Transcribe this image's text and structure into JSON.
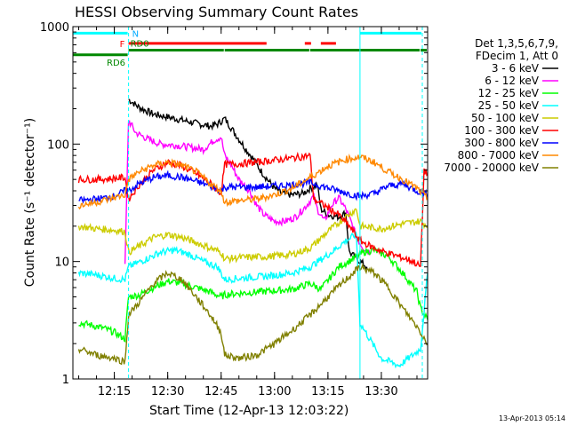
{
  "chart_data": {
    "type": "line",
    "title": "HESSI Observing Summary Count Rates",
    "xlabel": "Start Time (12-Apr-13 12:03:22)",
    "ylabel": "Count Rate (s⁻¹ detector⁻¹)",
    "y_scale": "log",
    "ylim": [
      1,
      1000
    ],
    "xlim": [
      "12:03:22",
      "13:43:00"
    ],
    "x_ticks": [
      "12:15",
      "12:30",
      "12:45",
      "13:00",
      "13:15",
      "13:30"
    ],
    "y_ticks": [
      "1",
      "10",
      "100",
      "1000"
    ],
    "footer_date": "13-Apr-2013 05:14",
    "legend_header": [
      "Det 1,3,5,6,7,9,",
      "FDecim 1, Att 0"
    ],
    "flag_labels": {
      "night": "N",
      "flare": "F",
      "rd0": "RD0",
      "rd6": "RD6"
    },
    "night_intervals": [
      [
        "12:03:22",
        "12:19:00"
      ],
      [
        "13:24:00",
        "13:41:30"
      ]
    ],
    "boundary_times": [
      "12:19:00",
      "13:24:00",
      "13:41:30"
    ],
    "flag_segments": {
      "night": {
        "color": "#00ffff",
        "y": 880,
        "segments": [
          [
            "12:03:22",
            "12:19:00"
          ],
          [
            "13:24:00",
            "13:41:30"
          ]
        ]
      },
      "flare": {
        "color": "#ff0000",
        "y": 720,
        "segments": [
          [
            "12:19:00",
            "12:58:00"
          ],
          [
            "13:08:30",
            "13:10:30"
          ],
          [
            "13:13:00",
            "13:17:30"
          ]
        ]
      },
      "rd0": {
        "color": "#008800",
        "y": 630,
        "segments": [
          [
            "12:19:00",
            "12:46:00"
          ],
          [
            "12:46:00",
            "13:10:00"
          ],
          [
            "13:10:00",
            "13:41:00"
          ],
          [
            "13:41:00",
            "13:43:00"
          ]
        ]
      },
      "rd6": {
        "color": "#008800",
        "y": 575,
        "segments": [
          [
            "12:03:22",
            "12:19:00"
          ]
        ]
      }
    },
    "series": [
      {
        "name": "3 - 6 keV",
        "color": "#000000",
        "points": [
          [
            "12:19:00",
            240
          ],
          [
            "12:22:00",
            205
          ],
          [
            "12:26:00",
            180
          ],
          [
            "12:30:00",
            170
          ],
          [
            "12:34:00",
            160
          ],
          [
            "12:38:00",
            150
          ],
          [
            "12:42:00",
            142
          ],
          [
            "12:44:00",
            148
          ],
          [
            "12:46:00",
            165
          ],
          [
            "12:48:00",
            135
          ],
          [
            "12:50:00",
            110
          ],
          [
            "12:52:00",
            90
          ],
          [
            "12:54:00",
            75
          ],
          [
            "12:56:00",
            60
          ],
          [
            "12:58:00",
            50
          ],
          [
            "13:00:00",
            42
          ],
          [
            "13:02:00",
            38
          ],
          [
            "13:05:00",
            37
          ],
          [
            "13:08:00",
            38
          ],
          [
            "13:10:00",
            42
          ],
          [
            "13:12:00",
            45
          ],
          [
            "13:13:00",
            28
          ],
          [
            "13:15:00",
            25
          ],
          [
            "13:18:00",
            24
          ],
          [
            "13:20:00",
            26
          ],
          [
            "13:21:00",
            12
          ],
          [
            "13:24:00",
            10
          ],
          [
            "13:26:00",
            9
          ]
        ]
      },
      {
        "name": "6 - 12 keV",
        "color": "#ff00ff",
        "points": [
          [
            "12:18:00",
            9
          ],
          [
            "12:19:00",
            160
          ],
          [
            "12:21:00",
            125
          ],
          [
            "12:25:00",
            108
          ],
          [
            "12:28:00",
            100
          ],
          [
            "12:32:00",
            98
          ],
          [
            "12:36:00",
            94
          ],
          [
            "12:40:00",
            90
          ],
          [
            "12:43:00",
            108
          ],
          [
            "12:45:00",
            115
          ],
          [
            "12:46:00",
            80
          ],
          [
            "12:48:00",
            65
          ],
          [
            "12:50:00",
            50
          ],
          [
            "12:53:00",
            40
          ],
          [
            "12:55:00",
            30
          ],
          [
            "12:57:00",
            25
          ],
          [
            "13:00:00",
            22
          ],
          [
            "13:03:00",
            22
          ],
          [
            "13:06:00",
            24
          ],
          [
            "13:09:00",
            30
          ],
          [
            "13:11:00",
            36
          ],
          [
            "13:12:00",
            28
          ],
          [
            "13:14:00",
            22
          ],
          [
            "13:16:00",
            30
          ],
          [
            "13:18:00",
            35
          ],
          [
            "13:20:00",
            28
          ],
          [
            "13:22:00",
            20
          ],
          [
            "13:23:00",
            16
          ],
          [
            "13:25:00",
            13
          ],
          [
            "13:27:00",
            12
          ]
        ]
      },
      {
        "name": "12 - 25 keV",
        "color": "#00ff00",
        "points": [
          [
            "12:05:00",
            3.0
          ],
          [
            "12:08:00",
            2.9
          ],
          [
            "12:12:00",
            2.7
          ],
          [
            "12:15:00",
            2.5
          ],
          [
            "12:18:00",
            2.2
          ],
          [
            "12:19:00",
            5.0
          ],
          [
            "12:22:00",
            5.2
          ],
          [
            "12:26:00",
            6.0
          ],
          [
            "12:30:00",
            6.8
          ],
          [
            "12:34:00",
            6.5
          ],
          [
            "12:38:00",
            6.0
          ],
          [
            "12:42:00",
            5.5
          ],
          [
            "12:45:00",
            5.0
          ],
          [
            "12:46:00",
            5.2
          ],
          [
            "12:48:00",
            5.3
          ],
          [
            "12:55:00",
            5.5
          ],
          [
            "13:05:00",
            5.8
          ],
          [
            "13:10:00",
            6.5
          ],
          [
            "13:13:00",
            5.8
          ],
          [
            "13:18:00",
            9.0
          ],
          [
            "13:22:00",
            10.5
          ],
          [
            "13:25:00",
            12.0
          ],
          [
            "13:28:00",
            12.5
          ],
          [
            "13:32:00",
            11.0
          ],
          [
            "13:36:00",
            8.0
          ],
          [
            "13:40:00",
            5.5
          ],
          [
            "13:41:00",
            4.0
          ],
          [
            "13:43:00",
            3.2
          ]
        ]
      },
      {
        "name": "25 - 50 keV",
        "color": "#00ffff",
        "points": [
          [
            "12:05:00",
            8.0
          ],
          [
            "12:10:00",
            7.7
          ],
          [
            "12:15:00",
            7.2
          ],
          [
            "12:18:00",
            7.0
          ],
          [
            "12:19:00",
            9.0
          ],
          [
            "12:24:00",
            10.5
          ],
          [
            "12:28:00",
            12.0
          ],
          [
            "12:32:00",
            12.5
          ],
          [
            "12:36:00",
            11.5
          ],
          [
            "12:40:00",
            10.0
          ],
          [
            "12:44:00",
            9.0
          ],
          [
            "12:46:00",
            7.0
          ],
          [
            "12:50:00",
            7.2
          ],
          [
            "12:58:00",
            7.5
          ],
          [
            "13:05:00",
            8.0
          ],
          [
            "13:10:00",
            9.0
          ],
          [
            "13:16:00",
            12.0
          ],
          [
            "13:20:00",
            15.0
          ],
          [
            "13:23:00",
            17.0
          ],
          [
            "13:24:00",
            3.0
          ],
          [
            "13:30:00",
            1.5
          ],
          [
            "13:35:00",
            1.3
          ],
          [
            "13:41:00",
            1.8
          ],
          [
            "13:43:00",
            8.0
          ]
        ]
      },
      {
        "name": "50 - 100 keV",
        "color": "#cccc00",
        "points": [
          [
            "12:05:00",
            20.0
          ],
          [
            "12:10:00",
            19.0
          ],
          [
            "12:15:00",
            18.5
          ],
          [
            "12:18:00",
            18.0
          ],
          [
            "12:19:00",
            12.0
          ],
          [
            "12:22:00",
            13.5
          ],
          [
            "12:26:00",
            16.0
          ],
          [
            "12:30:00",
            17.0
          ],
          [
            "12:34:00",
            16.0
          ],
          [
            "12:38:00",
            14.5
          ],
          [
            "12:42:00",
            13.0
          ],
          [
            "12:45:00",
            12.0
          ],
          [
            "12:46:00",
            10.5
          ],
          [
            "12:50:00",
            10.8
          ],
          [
            "12:58:00",
            11.0
          ],
          [
            "13:05:00",
            11.5
          ],
          [
            "13:10:00",
            13.0
          ],
          [
            "13:15:00",
            18.0
          ],
          [
            "13:20:00",
            24.0
          ],
          [
            "13:23:00",
            28.0
          ],
          [
            "13:24:00",
            20.0
          ],
          [
            "13:30:00",
            19.0
          ],
          [
            "13:36:00",
            21.0
          ],
          [
            "13:41:00",
            22.0
          ],
          [
            "13:43:00",
            20.0
          ]
        ]
      },
      {
        "name": "100 - 300 keV",
        "color": "#ff0000",
        "points": [
          [
            "12:05:00",
            50
          ],
          [
            "12:10:00",
            50
          ],
          [
            "12:15:00",
            51
          ],
          [
            "12:18:00",
            52
          ],
          [
            "12:19:00",
            34
          ],
          [
            "12:22:00",
            45
          ],
          [
            "12:26:00",
            60
          ],
          [
            "12:30:00",
            70
          ],
          [
            "12:34:00",
            65
          ],
          [
            "12:38:00",
            56
          ],
          [
            "12:42:00",
            46
          ],
          [
            "12:45:00",
            38
          ],
          [
            "12:46:00",
            67
          ],
          [
            "12:50:00",
            68
          ],
          [
            "12:55:00",
            70
          ],
          [
            "13:00:00",
            73
          ],
          [
            "13:05:00",
            76
          ],
          [
            "13:10:00",
            80
          ],
          [
            "13:11:00",
            34
          ],
          [
            "13:14:00",
            30
          ],
          [
            "13:18:00",
            25
          ],
          [
            "13:21:00",
            20
          ],
          [
            "13:24:00",
            15
          ],
          [
            "13:28:00",
            13
          ],
          [
            "13:31:00",
            12
          ],
          [
            "13:35:00",
            11
          ],
          [
            "13:39:00",
            10
          ],
          [
            "13:41:00",
            9
          ],
          [
            "13:42:00",
            60
          ],
          [
            "13:43:00",
            55
          ]
        ]
      },
      {
        "name": "300 - 800 keV",
        "color": "#0000ff",
        "points": [
          [
            "12:05:00",
            33
          ],
          [
            "12:10:00",
            34
          ],
          [
            "12:15:00",
            36
          ],
          [
            "12:18:00",
            40
          ],
          [
            "12:19:00",
            40
          ],
          [
            "12:22:00",
            46
          ],
          [
            "12:26:00",
            52
          ],
          [
            "12:30:00",
            54
          ],
          [
            "12:34:00",
            52
          ],
          [
            "12:38:00",
            48
          ],
          [
            "12:42:00",
            44
          ],
          [
            "12:45:00",
            40
          ],
          [
            "12:46:00",
            43
          ],
          [
            "12:50:00",
            43
          ],
          [
            "12:55:00",
            43
          ],
          [
            "13:00:00",
            44
          ],
          [
            "13:05:00",
            45
          ],
          [
            "13:10:00",
            47
          ],
          [
            "13:13:00",
            44
          ],
          [
            "13:18:00",
            40
          ],
          [
            "13:22:00",
            37
          ],
          [
            "13:24:00",
            36
          ],
          [
            "13:28:00",
            38
          ],
          [
            "13:32:00",
            44
          ],
          [
            "13:36:00",
            46
          ],
          [
            "13:40:00",
            40
          ],
          [
            "13:43:00",
            37
          ]
        ]
      },
      {
        "name": "800 - 7000 keV",
        "color": "#ff8800",
        "points": [
          [
            "12:05:00",
            30
          ],
          [
            "12:10:00",
            32
          ],
          [
            "12:15:00",
            35
          ],
          [
            "12:18:00",
            37
          ],
          [
            "12:19:00",
            50
          ],
          [
            "12:22:00",
            58
          ],
          [
            "12:26:00",
            66
          ],
          [
            "12:30:00",
            70
          ],
          [
            "12:34:00",
            66
          ],
          [
            "12:38:00",
            58
          ],
          [
            "12:42:00",
            46
          ],
          [
            "12:45:00",
            40
          ],
          [
            "12:46:00",
            32
          ],
          [
            "12:50:00",
            33
          ],
          [
            "12:55:00",
            34
          ],
          [
            "13:00:00",
            37
          ],
          [
            "13:05:00",
            42
          ],
          [
            "13:10:00",
            52
          ],
          [
            "13:15:00",
            65
          ],
          [
            "13:20:00",
            74
          ],
          [
            "13:24:00",
            78
          ],
          [
            "13:28:00",
            70
          ],
          [
            "13:32:00",
            58
          ],
          [
            "13:36:00",
            50
          ],
          [
            "13:40:00",
            42
          ],
          [
            "13:43:00",
            34
          ]
        ]
      },
      {
        "name": "7000 - 20000 keV",
        "color": "#808000",
        "points": [
          [
            "12:05:00",
            1.8
          ],
          [
            "12:10:00",
            1.6
          ],
          [
            "12:15:00",
            1.5
          ],
          [
            "12:18:00",
            1.4
          ],
          [
            "12:19:00",
            3.5
          ],
          [
            "12:22:00",
            4.5
          ],
          [
            "12:26:00",
            6.5
          ],
          [
            "12:30:00",
            8.0
          ],
          [
            "12:34:00",
            7.0
          ],
          [
            "12:38:00",
            5.0
          ],
          [
            "12:42:00",
            3.5
          ],
          [
            "12:45:00",
            2.5
          ],
          [
            "12:46:00",
            1.6
          ],
          [
            "12:50:00",
            1.5
          ],
          [
            "12:55:00",
            1.6
          ],
          [
            "13:00:00",
            2.0
          ],
          [
            "13:05:00",
            2.6
          ],
          [
            "13:10:00",
            3.5
          ],
          [
            "13:15:00",
            5.0
          ],
          [
            "13:20:00",
            7.0
          ],
          [
            "13:24:00",
            9.0
          ],
          [
            "13:28:00",
            8.0
          ],
          [
            "13:32:00",
            6.0
          ],
          [
            "13:36:00",
            4.0
          ],
          [
            "13:40:00",
            2.8
          ],
          [
            "13:43:00",
            2.0
          ]
        ]
      }
    ]
  }
}
